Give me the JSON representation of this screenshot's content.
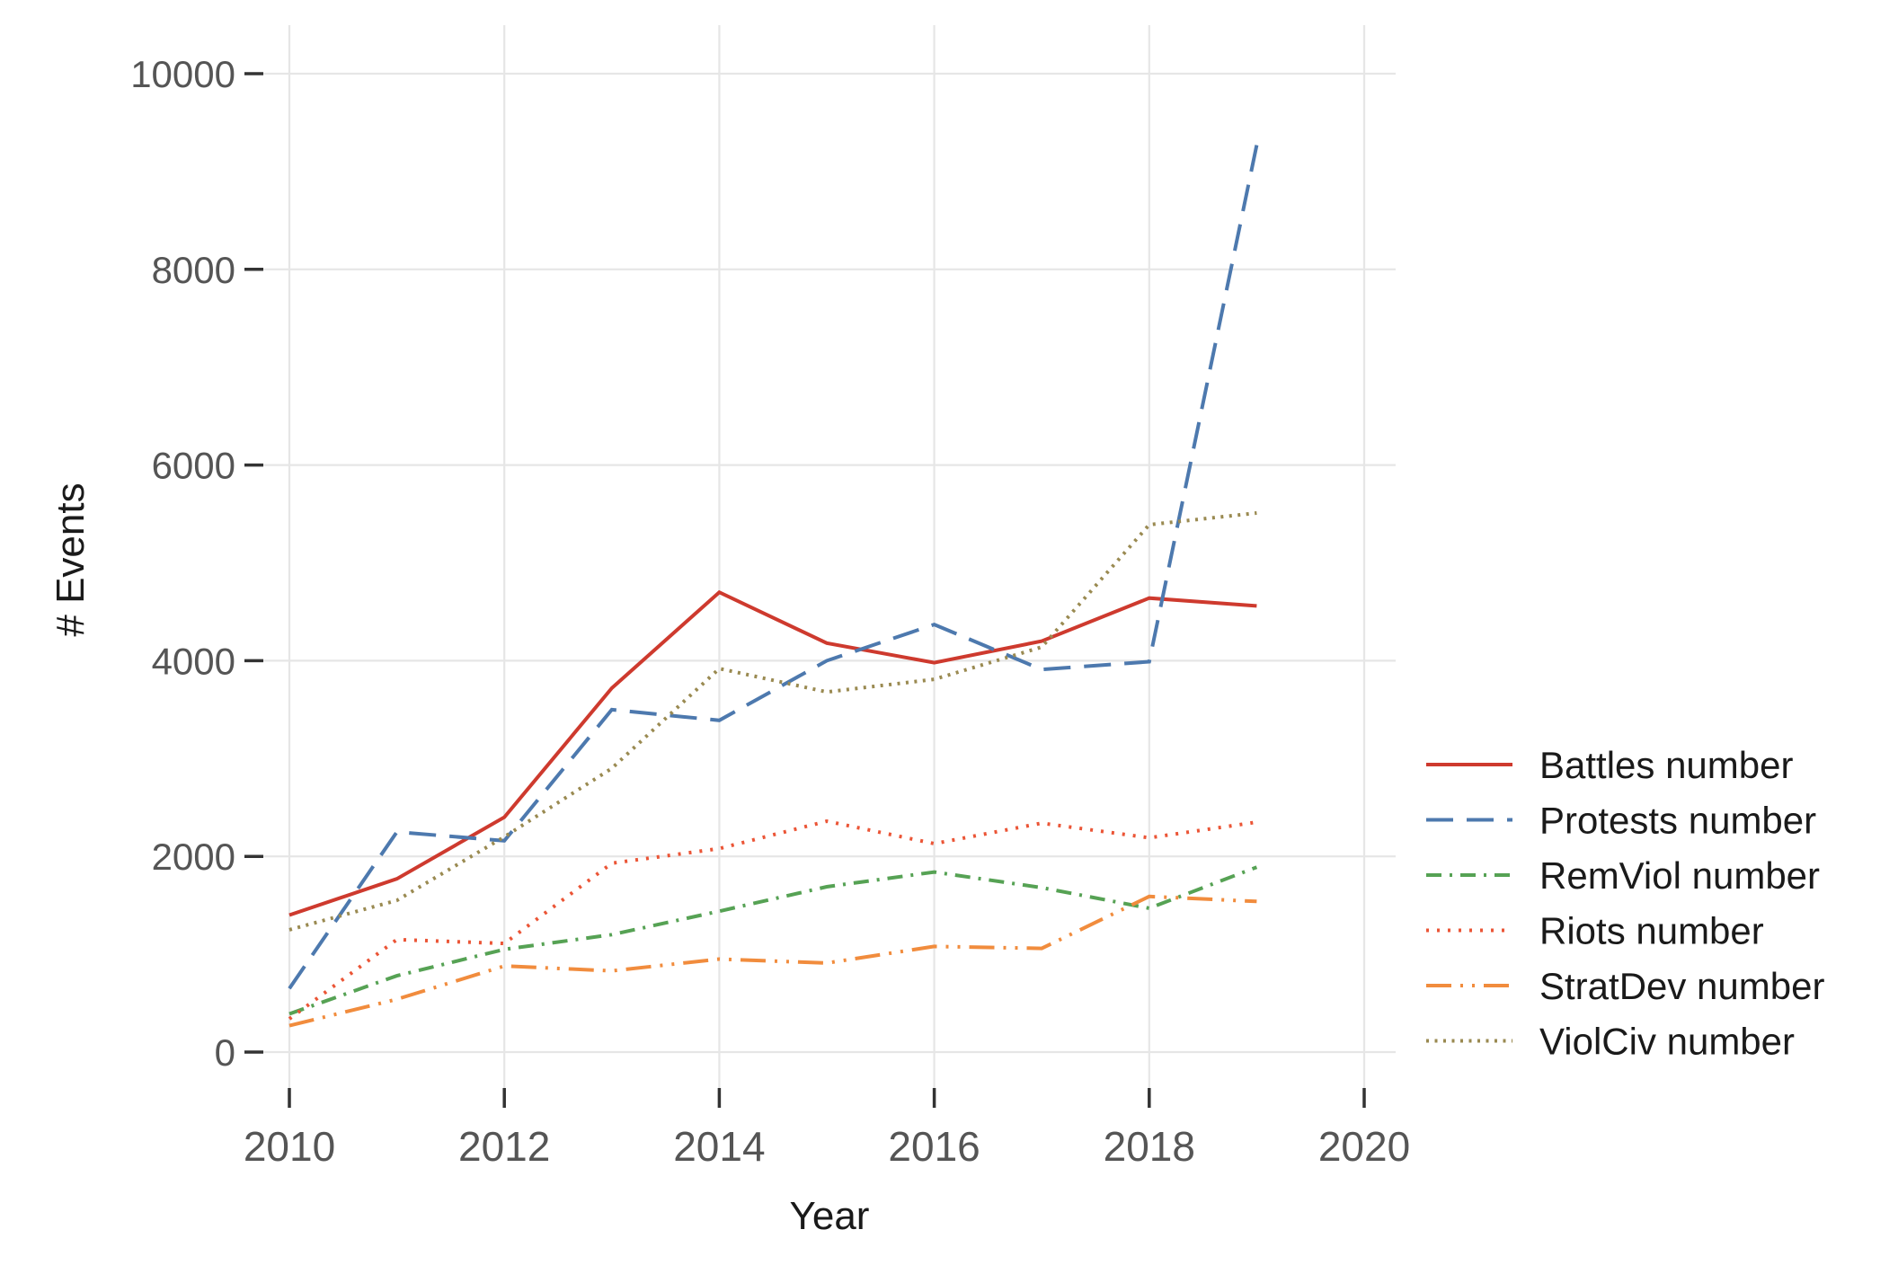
{
  "chart_data": {
    "type": "line",
    "title": "",
    "xlabel": "Year",
    "ylabel": "# Events",
    "x": [
      2010,
      2011,
      2012,
      2013,
      2014,
      2015,
      2016,
      2017,
      2018,
      2019
    ],
    "x_ticks": [
      2010,
      2012,
      2014,
      2016,
      2018,
      2020
    ],
    "y_ticks": [
      0,
      2000,
      4000,
      6000,
      8000,
      10000
    ],
    "xlim": [
      2009.75,
      2020.3
    ],
    "ylim": [
      -370,
      10500
    ],
    "grid": true,
    "legend_position": "right",
    "background_color": "#ffffff",
    "gridline_color": "#e6e6e6",
    "tick_color": "#333333",
    "tick_label_color": "#555555",
    "series": [
      {
        "name": "Battles number",
        "color": "#CE3A2E",
        "dash": "solid",
        "values": [
          1400,
          1770,
          2400,
          3720,
          4700,
          4180,
          3980,
          4200,
          4640,
          4560
        ]
      },
      {
        "name": "Protests number",
        "color": "#4D79AE",
        "dash": "longdash",
        "values": [
          650,
          2250,
          2160,
          3500,
          3390,
          4000,
          4370,
          3910,
          3990,
          9270
        ]
      },
      {
        "name": "RemViol number",
        "color": "#56A254",
        "dash": "dashdot",
        "values": [
          390,
          780,
          1050,
          1200,
          1440,
          1690,
          1840,
          1680,
          1470,
          1890
        ]
      },
      {
        "name": "Riots number",
        "color": "#EB5536",
        "dash": "dotted",
        "values": [
          340,
          1150,
          1110,
          1930,
          2080,
          2360,
          2130,
          2340,
          2190,
          2350
        ]
      },
      {
        "name": "StratDev number",
        "color": "#F18C3D",
        "dash": "longdashdotdot",
        "values": [
          270,
          540,
          880,
          830,
          950,
          910,
          1080,
          1060,
          1590,
          1540
        ]
      },
      {
        "name": "ViolCiv number",
        "color": "#9A8A51",
        "dash": "finedot",
        "values": [
          1250,
          1550,
          2200,
          2900,
          3920,
          3680,
          3810,
          4140,
          5390,
          5510
        ]
      }
    ]
  }
}
